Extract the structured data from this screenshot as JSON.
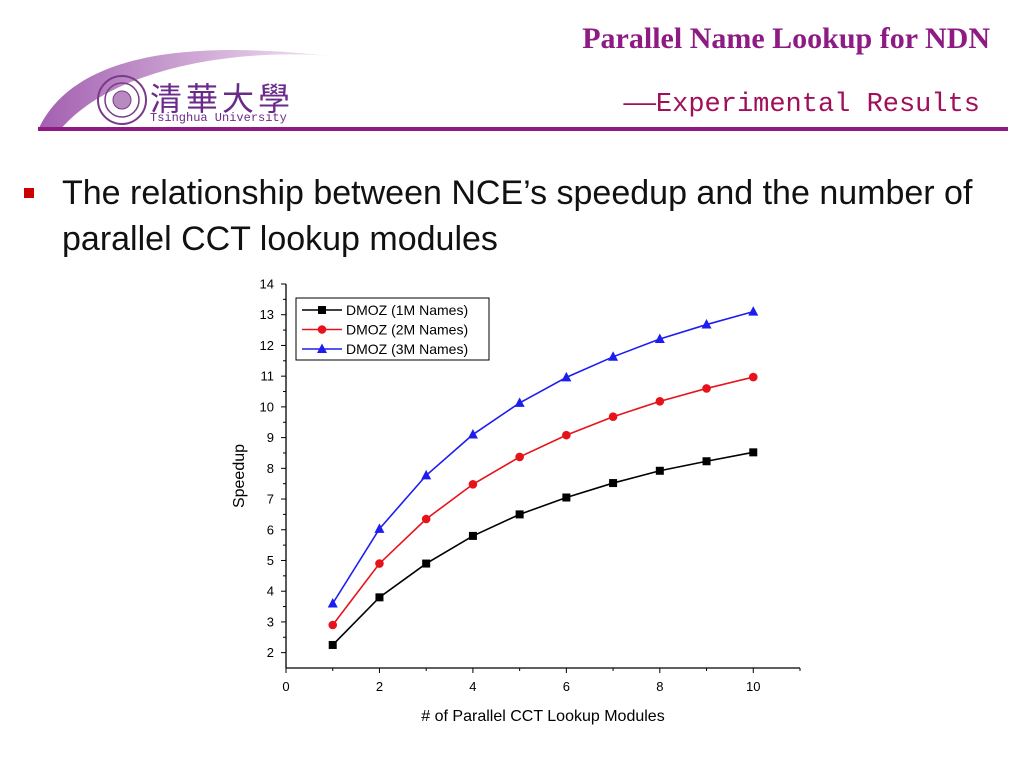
{
  "header": {
    "title": "Parallel Name Lookup for NDN",
    "subtitle": "——Experimental Results",
    "logo_cn": "清華大學",
    "logo_en": "Tsinghua University"
  },
  "body": {
    "bullet_text": "The relationship between NCE’s speedup and the number of parallel CCT lookup modules"
  },
  "colors": {
    "brand_purple": "#8e1a84",
    "subtitle_red": "#a0105a",
    "bullet_red": "#cc0000"
  },
  "chart_data": {
    "type": "line",
    "title": "",
    "xlabel": "# of Parallel CCT Lookup Modules",
    "ylabel": "Speedup",
    "xlim": [
      0,
      11
    ],
    "ylim": [
      1.5,
      14
    ],
    "xticks": [
      0,
      2,
      4,
      6,
      8,
      10
    ],
    "yticks": [
      2,
      3,
      4,
      5,
      6,
      7,
      8,
      9,
      10,
      11,
      12,
      13,
      14
    ],
    "x": [
      1,
      2,
      3,
      4,
      5,
      6,
      7,
      8,
      9,
      10
    ],
    "legend_position": "top-left",
    "grid": false,
    "series": [
      {
        "name": "DMOZ (1M Names)",
        "color": "#000000",
        "marker": "square",
        "values": [
          2.25,
          3.8,
          4.9,
          5.8,
          6.5,
          7.05,
          7.52,
          7.92,
          8.23,
          8.52
        ]
      },
      {
        "name": "DMOZ (2M Names)",
        "color": "#e8121b",
        "marker": "circle",
        "values": [
          2.9,
          4.9,
          6.35,
          7.48,
          8.37,
          9.08,
          9.68,
          10.18,
          10.6,
          10.97
        ]
      },
      {
        "name": "DMOZ (3M Names)",
        "color": "#1d1df0",
        "marker": "triangle",
        "values": [
          3.6,
          6.03,
          7.77,
          9.1,
          10.13,
          10.96,
          11.63,
          12.21,
          12.68,
          13.1
        ]
      }
    ]
  }
}
